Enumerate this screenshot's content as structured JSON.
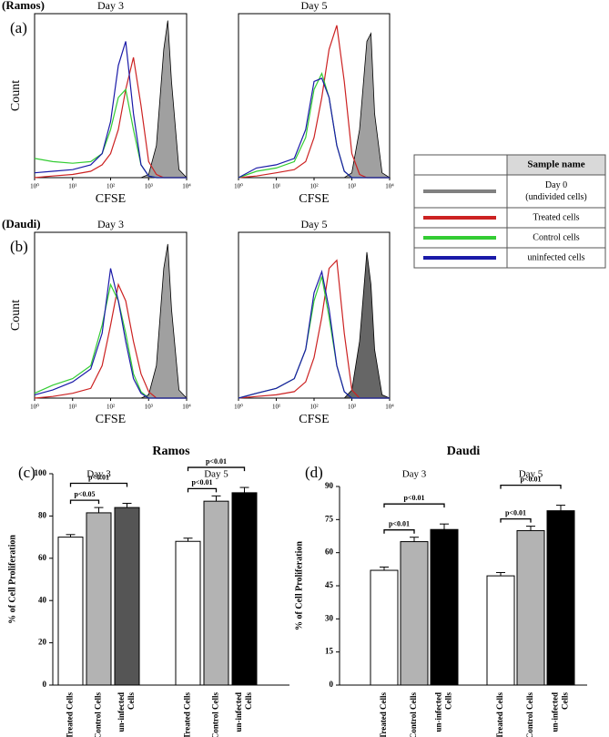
{
  "legend": {
    "header": "Sample name",
    "rows": [
      {
        "label": [
          "Day 0",
          "(undivided cells)"
        ],
        "color": "#808080"
      },
      {
        "label": [
          "Treated cells"
        ],
        "color": "#cc2222"
      },
      {
        "label": [
          "Control cells"
        ],
        "color": "#33cc33"
      },
      {
        "label": [
          "uninfected cells"
        ],
        "color": "#1a1aa8"
      }
    ]
  },
  "chart_data": [
    {
      "type": "line",
      "cell_line": "(Ramos)",
      "panel_label": "(a)",
      "title": "Day 3",
      "xlabel": "CFSE",
      "ylabel": "Count",
      "xscale": "log",
      "xlim": [
        1,
        10000
      ],
      "xticks": [
        {
          "value": 1,
          "label": "10⁰"
        },
        {
          "value": 10,
          "label": "10¹"
        },
        {
          "value": 100,
          "label": "10²"
        },
        {
          "value": 1000,
          "label": "10³"
        },
        {
          "value": 10000,
          "label": "10⁴"
        }
      ],
      "ylim": [
        0,
        100
      ],
      "x": [
        1,
        3,
        10,
        30,
        60,
        100,
        160,
        250,
        400,
        630,
        1000,
        1600,
        2500,
        3200,
        4000,
        6300,
        10000
      ],
      "series": [
        {
          "color": "#808080",
          "fill": "#a0a0a0",
          "values": [
            0,
            0,
            0,
            0,
            0,
            0,
            0,
            0,
            0,
            0,
            2,
            20,
            80,
            98,
            60,
            5,
            0
          ]
        },
        {
          "color": "#cc2222",
          "values": [
            0,
            1,
            2,
            4,
            8,
            15,
            30,
            55,
            75,
            45,
            10,
            2,
            0,
            0,
            0,
            0,
            0
          ]
        },
        {
          "color": "#33cc33",
          "values": [
            12,
            10,
            9,
            10,
            15,
            30,
            50,
            55,
            30,
            8,
            1,
            0,
            0,
            0,
            0,
            0,
            0
          ]
        },
        {
          "color": "#1a1aa8",
          "values": [
            3,
            4,
            5,
            8,
            15,
            35,
            70,
            85,
            40,
            8,
            1,
            0,
            0,
            0,
            0,
            0,
            0
          ]
        }
      ]
    },
    {
      "type": "line",
      "title": "Day 5",
      "xlabel": "CFSE",
      "xscale": "log",
      "xlim": [
        1,
        10000
      ],
      "xticks": [
        {
          "value": 1,
          "label": "10⁰"
        },
        {
          "value": 10,
          "label": "10¹"
        },
        {
          "value": 100,
          "label": "10²"
        },
        {
          "value": 1000,
          "label": "10³"
        },
        {
          "value": 10000,
          "label": "10⁴"
        }
      ],
      "ylim": [
        0,
        100
      ],
      "x": [
        1,
        3,
        10,
        30,
        60,
        100,
        160,
        250,
        400,
        630,
        1000,
        1600,
        2500,
        3200,
        4000,
        6300,
        10000
      ],
      "series": [
        {
          "color": "#808080",
          "fill": "#a0a0a0",
          "values": [
            0,
            0,
            0,
            0,
            0,
            0,
            0,
            0,
            0,
            0,
            3,
            30,
            85,
            90,
            40,
            3,
            0
          ]
        },
        {
          "color": "#cc2222",
          "values": [
            0,
            1,
            3,
            5,
            10,
            25,
            50,
            80,
            95,
            60,
            15,
            2,
            0,
            0,
            0,
            0,
            0
          ]
        },
        {
          "color": "#33cc33",
          "values": [
            0,
            4,
            6,
            10,
            25,
            55,
            65,
            50,
            20,
            4,
            0,
            0,
            0,
            0,
            0,
            0,
            0
          ]
        },
        {
          "color": "#1a1aa8",
          "values": [
            0,
            6,
            8,
            12,
            30,
            60,
            62,
            50,
            20,
            4,
            0,
            0,
            0,
            0,
            0,
            0,
            0
          ]
        }
      ]
    },
    {
      "type": "line",
      "cell_line": "(Daudi)",
      "panel_label": "(b)",
      "title": "Day 3",
      "xlabel": "CFSE",
      "ylabel": "Count",
      "xscale": "log",
      "xlim": [
        1,
        10000
      ],
      "xticks": [
        {
          "value": 1,
          "label": "10⁰"
        },
        {
          "value": 10,
          "label": "10¹"
        },
        {
          "value": 100,
          "label": "10²"
        },
        {
          "value": 1000,
          "label": "10³"
        },
        {
          "value": 10000,
          "label": "10⁴"
        }
      ],
      "ylim": [
        0,
        100
      ],
      "x": [
        1,
        3,
        10,
        30,
        60,
        100,
        160,
        250,
        400,
        630,
        1000,
        1600,
        2500,
        3200,
        4000,
        6300,
        10000
      ],
      "series": [
        {
          "color": "#808080",
          "fill": "#a0a0a0",
          "values": [
            0,
            0,
            0,
            0,
            0,
            0,
            0,
            0,
            0,
            0,
            2,
            20,
            80,
            95,
            55,
            5,
            0
          ]
        },
        {
          "color": "#cc2222",
          "values": [
            0,
            1,
            3,
            6,
            20,
            45,
            70,
            60,
            35,
            15,
            4,
            0,
            0,
            0,
            0,
            0,
            0
          ]
        },
        {
          "color": "#33cc33",
          "values": [
            3,
            8,
            12,
            20,
            45,
            70,
            60,
            40,
            15,
            4,
            0,
            0,
            0,
            0,
            0,
            0,
            0
          ]
        },
        {
          "color": "#1a1aa8",
          "values": [
            2,
            5,
            10,
            18,
            40,
            80,
            60,
            35,
            12,
            3,
            0,
            0,
            0,
            0,
            0,
            0,
            0
          ]
        }
      ]
    },
    {
      "type": "line",
      "title": "Day 5",
      "xlabel": "CFSE",
      "xscale": "log",
      "xlim": [
        1,
        10000
      ],
      "xticks": [
        {
          "value": 1,
          "label": "10⁰"
        },
        {
          "value": 10,
          "label": "10¹"
        },
        {
          "value": 100,
          "label": "10²"
        },
        {
          "value": 1000,
          "label": "10³"
        },
        {
          "value": 10000,
          "label": "10⁴"
        }
      ],
      "ylim": [
        0,
        100
      ],
      "x": [
        1,
        3,
        10,
        30,
        60,
        100,
        160,
        250,
        400,
        630,
        1000,
        1600,
        2500,
        3200,
        4000,
        6300,
        10000
      ],
      "series": [
        {
          "color": "#808080",
          "fill": "#666666",
          "values": [
            0,
            0,
            0,
            0,
            0,
            0,
            0,
            0,
            0,
            0,
            5,
            35,
            90,
            70,
            30,
            2,
            0
          ]
        },
        {
          "color": "#cc2222",
          "values": [
            0,
            1,
            2,
            4,
            10,
            25,
            50,
            80,
            85,
            40,
            5,
            0,
            0,
            0,
            0,
            0,
            0
          ]
        },
        {
          "color": "#33cc33",
          "values": [
            0,
            3,
            6,
            12,
            30,
            60,
            75,
            50,
            20,
            4,
            0,
            0,
            0,
            0,
            0,
            0,
            0
          ]
        },
        {
          "color": "#1a1aa8",
          "values": [
            0,
            3,
            6,
            12,
            30,
            65,
            78,
            55,
            20,
            4,
            0,
            0,
            0,
            0,
            0,
            0,
            0
          ]
        }
      ]
    },
    {
      "type": "bar",
      "panel_label": "(c)",
      "title": "Ramos",
      "ylabel": "% of Cell Proliferation",
      "categories": [
        "Treated Cells",
        "Control Cells",
        [
          "un-infected",
          "Cells"
        ]
      ],
      "ylim": [
        0,
        100
      ],
      "yticks": [
        0,
        20,
        40,
        60,
        80,
        100
      ],
      "series": [
        {
          "name": "Day 3",
          "values": [
            70,
            81.5,
            84
          ],
          "errors": [
            1.2,
            2.5,
            2
          ],
          "colors": [
            "#ffffff",
            "#b3b3b3",
            "#555555"
          ],
          "annotations": [
            "p<0.05",
            "p<0.01"
          ]
        },
        {
          "name": "Day 5",
          "values": [
            68,
            87,
            91
          ],
          "errors": [
            1.5,
            2.5,
            2.5
          ],
          "colors": [
            "#ffffff",
            "#b3b3b3",
            "#000000"
          ],
          "annotations": [
            "p<0.01",
            "p<0.01"
          ]
        }
      ]
    },
    {
      "type": "bar",
      "panel_label": "(d)",
      "title": "Daudi",
      "ylabel": "% of Cell Proliferation",
      "categories": [
        "Treated Cells",
        "Control Cells",
        [
          "un-infected",
          "Cells"
        ]
      ],
      "ylim": [
        0,
        90
      ],
      "yticks": [
        0,
        15,
        30,
        45,
        60,
        75,
        90
      ],
      "series": [
        {
          "name": "Day 3",
          "values": [
            52,
            65,
            70.5
          ],
          "errors": [
            1.5,
            2,
            2.5
          ],
          "colors": [
            "#ffffff",
            "#b3b3b3",
            "#000000"
          ],
          "annotations": [
            "p<0.01",
            "p<0.01"
          ]
        },
        {
          "name": "Day 5",
          "values": [
            49.5,
            70,
            79
          ],
          "errors": [
            1.5,
            2,
            2.5
          ],
          "colors": [
            "#ffffff",
            "#b3b3b3",
            "#000000"
          ],
          "annotations": [
            "p<0.01",
            "p<0.01"
          ]
        }
      ]
    }
  ]
}
